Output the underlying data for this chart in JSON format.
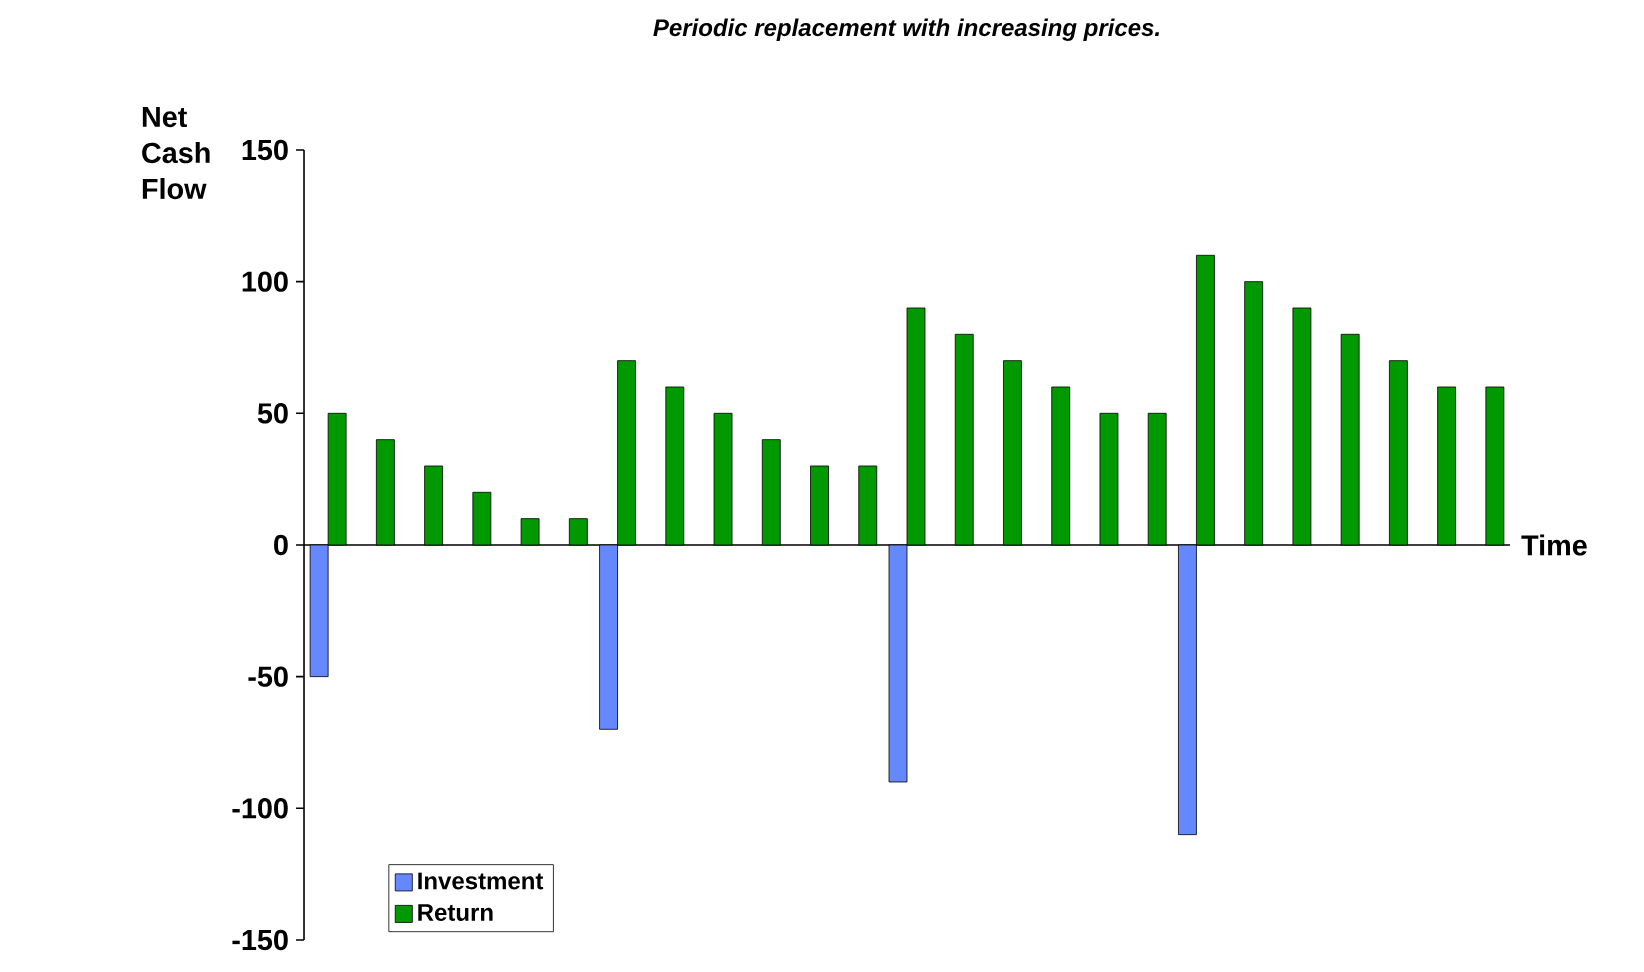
{
  "chart_data": {
    "type": "bar",
    "title": "Periodic replacement with increasing prices.",
    "xlabel": "Time",
    "ylabel": "Net Cash Flow",
    "categories": [
      null,
      null,
      null,
      null,
      null,
      null,
      null,
      null,
      null,
      null,
      null,
      null,
      null,
      null,
      null,
      null,
      null,
      null,
      null,
      null,
      null,
      null,
      null,
      null,
      null
    ],
    "series": [
      {
        "name": "Investment",
        "color": "#6688ff",
        "values": [
          -50,
          null,
          null,
          null,
          null,
          null,
          -70,
          null,
          null,
          null,
          null,
          null,
          -90,
          null,
          null,
          null,
          null,
          null,
          -110,
          null,
          null,
          null,
          null,
          null,
          null
        ]
      },
      {
        "name": "Return",
        "color": "#009900",
        "values": [
          50,
          40,
          30,
          20,
          10,
          10,
          70,
          60,
          50,
          40,
          30,
          30,
          90,
          80,
          70,
          60,
          50,
          50,
          110,
          100,
          90,
          80,
          70,
          60,
          60
        ]
      }
    ],
    "ylim": [
      -150,
      150
    ],
    "yticks": [
      -150,
      -100,
      -50,
      0,
      50,
      100,
      150
    ],
    "legend": "bottom left"
  }
}
